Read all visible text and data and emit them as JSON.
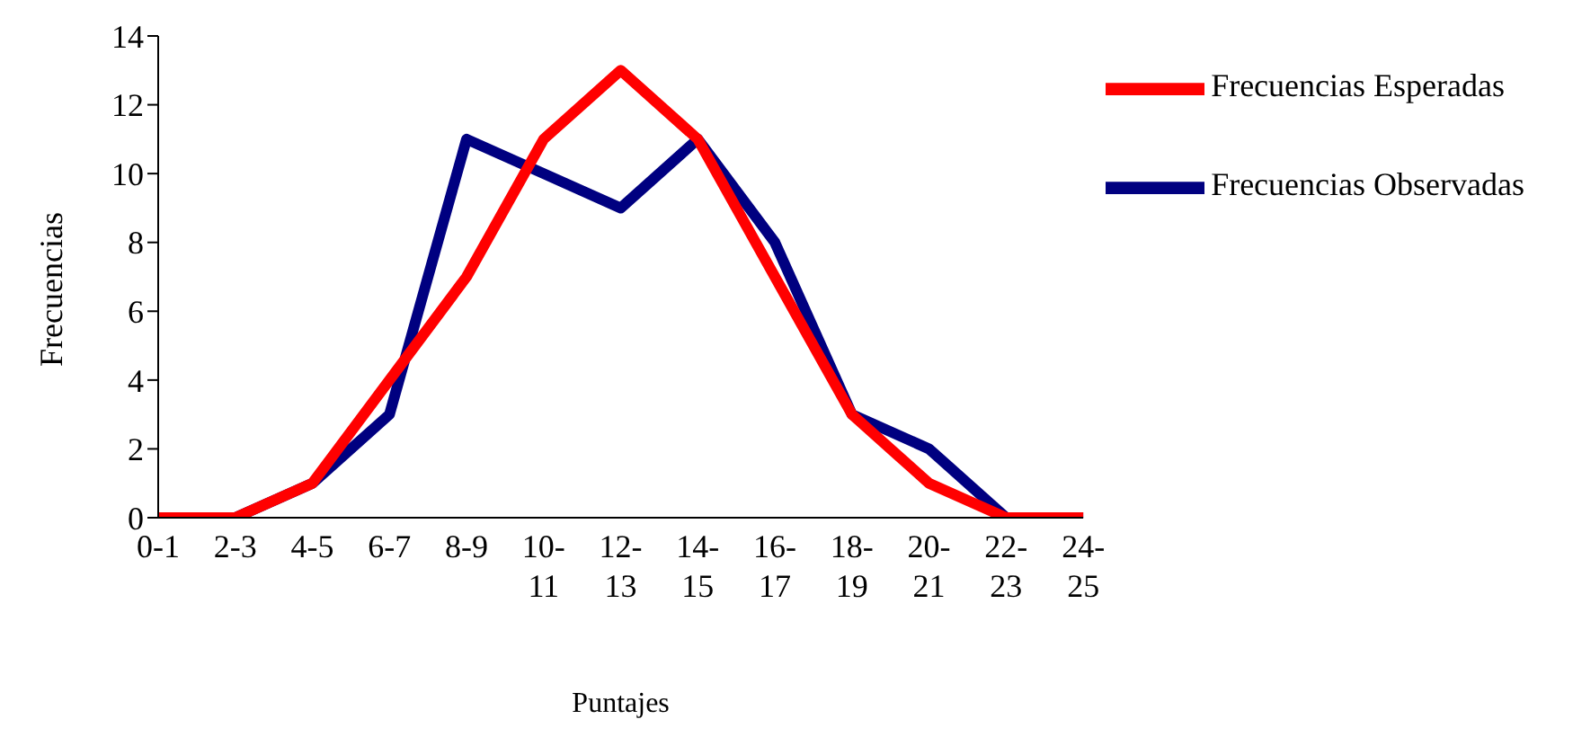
{
  "chart_data": {
    "type": "line",
    "xlabel": "Puntajes",
    "ylabel": "Frecuencias",
    "categories": [
      "0-1",
      "2-3",
      "4-5",
      "6-7",
      "8-9",
      "10-11",
      "12-13",
      "14-15",
      "16-17",
      "18-19",
      "20-21",
      "22-23",
      "24-25"
    ],
    "series": [
      {
        "name": "Frecuencias Observadas",
        "color": "#000080",
        "values": [
          0,
          0,
          1,
          3,
          11,
          10,
          9,
          11,
          8,
          3,
          2,
          0,
          0
        ]
      },
      {
        "name": "Frecuencias Esperadas",
        "color": "#ff0000",
        "values": [
          0,
          0,
          1,
          4,
          7,
          11,
          13,
          11,
          7,
          3,
          1,
          0,
          0
        ]
      }
    ],
    "ylim": [
      0,
      14
    ],
    "yticks": [
      0,
      2,
      4,
      6,
      8,
      10,
      12,
      14
    ],
    "grid": false,
    "legend": "top right",
    "marker": "none",
    "line_style": "solid"
  }
}
